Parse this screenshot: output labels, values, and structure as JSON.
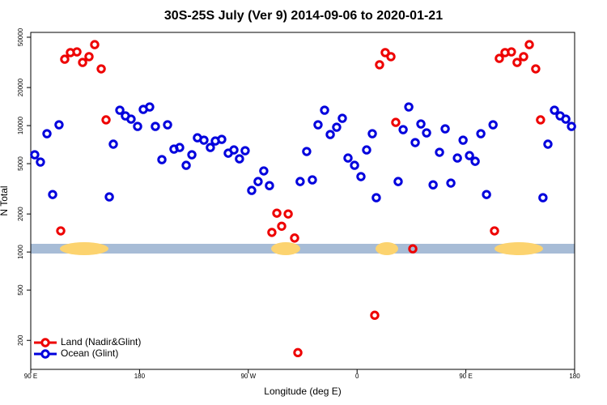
{
  "chart_data": {
    "type": "scatter",
    "title": "30S-25S July (Ver 9)   2014-09-06 to 2020-01-21",
    "x_label": "Longitude (deg E)",
    "y_label": "N Total",
    "log_y": true,
    "legend": "bottom-left",
    "xlim": [
      90,
      540
    ],
    "ylim": [
      118,
      54600
    ],
    "xticks": [
      {
        "value": 90,
        "label": "90 E"
      },
      180,
      {
        "value": 270,
        "label": "90 W"
      },
      {
        "value": 360,
        "label": "0"
      },
      {
        "value": 450,
        "label": "90 E"
      },
      {
        "value": 540,
        "label": "180"
      }
    ],
    "yticks": [
      200,
      500,
      1000,
      2000,
      5000,
      10000,
      20000,
      50000
    ],
    "series": [
      {
        "name": "Land (Nadir&Glint)",
        "color": "#ee0000",
        "x": [
          114.8,
          118.1,
          122.8,
          128.2,
          132.9,
          138.2,
          142.9,
          148.3,
          152.3,
          289.5,
          293.6,
          297.6,
          303.0,
          308.3,
          311.0,
          374.6,
          378.6,
          383.3,
          388.0,
          392.0,
          406.1,
          473.7,
          477.7,
          482.4,
          487.7,
          492.4,
          497.8,
          502.5,
          507.8,
          511.8
        ],
        "values": [
          1470,
          33500,
          37800,
          38300,
          31600,
          35100,
          43700,
          28100,
          11100,
          1430,
          2030,
          1600,
          2000,
          1290,
          160,
          316,
          30300,
          37800,
          35100,
          10600,
          1060,
          1470,
          34000,
          37800,
          38300,
          31600,
          35100,
          43700,
          28100,
          11100
        ]
      },
      {
        "name": "Ocean (Glint)",
        "color": "#0000dd",
        "x": [
          93.3,
          98.0,
          103.4,
          108.1,
          113.4,
          155.0,
          158.3,
          163.7,
          168.3,
          173.0,
          178.4,
          183.1,
          188.4,
          193.1,
          198.5,
          203.2,
          208.5,
          213.2,
          218.6,
          223.3,
          227.9,
          233.3,
          238.6,
          242.7,
          248.0,
          253.4,
          258.1,
          262.7,
          267.4,
          272.8,
          278.1,
          282.8,
          287.5,
          312.9,
          318.3,
          323.0,
          327.7,
          333.1,
          337.8,
          343.1,
          347.8,
          352.5,
          357.9,
          363.2,
          367.9,
          372.6,
          375.9,
          394.0,
          398.1,
          402.8,
          408.1,
          412.8,
          417.5,
          422.9,
          428.2,
          432.9,
          437.6,
          443.0,
          447.7,
          453.0,
          457.7,
          462.4,
          467.1,
          472.5,
          513.8,
          517.9,
          523.3,
          528.0,
          532.7,
          537.4
        ],
        "values": [
          5880,
          5150,
          8630,
          2850,
          10150,
          2730,
          7130,
          13240,
          11940,
          11250,
          9850,
          13430,
          14040,
          9850,
          5380,
          10150,
          6520,
          6710,
          4850,
          5880,
          8010,
          7670,
          6710,
          7550,
          7780,
          6050,
          6420,
          5460,
          6330,
          3070,
          3610,
          4380,
          3350,
          3610,
          6240,
          3720,
          10150,
          13240,
          8500,
          9710,
          11420,
          5540,
          4850,
          3950,
          6420,
          8630,
          2690,
          3610,
          9290,
          14040,
          7340,
          10300,
          8760,
          3400,
          6150,
          9430,
          3510,
          5540,
          7670,
          5790,
          5220,
          8630,
          2850,
          10150,
          2690,
          7130,
          13240,
          11940,
          11250,
          9850
        ]
      }
    ]
  }
}
